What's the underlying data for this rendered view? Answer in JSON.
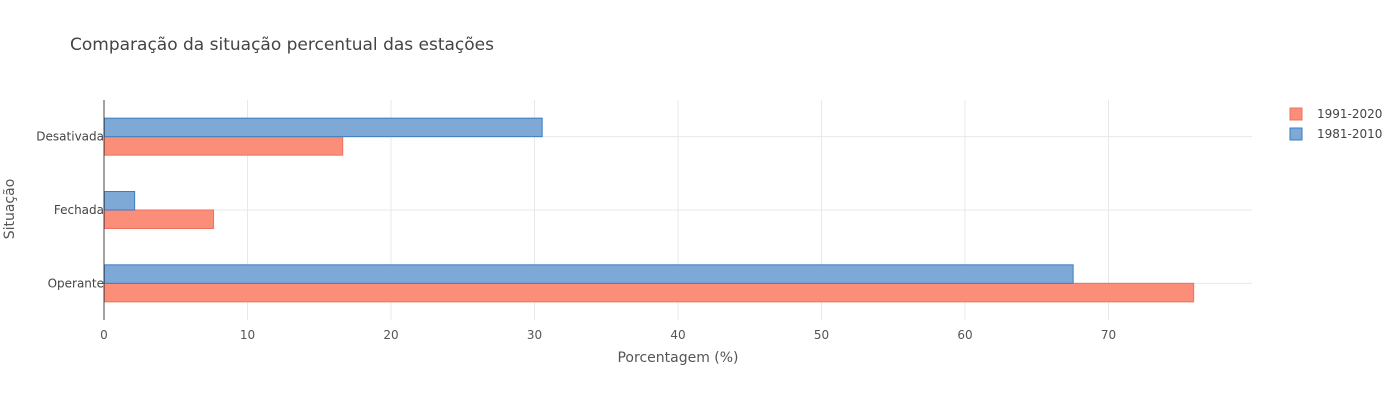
{
  "chart_data": {
    "type": "bar",
    "orientation": "horizontal",
    "barmode": "group",
    "title": "Comparação da situação percentual das estações",
    "xlabel": "Porcentagem (%)",
    "ylabel": "Situação",
    "categories": [
      "Operante",
      "Fechada",
      "Desativada"
    ],
    "xlim": [
      0,
      80
    ],
    "x_ticks": [
      0,
      10,
      20,
      30,
      40,
      50,
      60,
      70
    ],
    "x_tick_labels": [
      "0",
      "10",
      "20",
      "30",
      "40",
      "50",
      "60",
      "70"
    ],
    "grid": true,
    "legend_position": "top-right",
    "series": [
      {
        "name": "1991-2020",
        "values": [
          75.9,
          7.6,
          16.6
        ],
        "color": "#fa8e78",
        "stroke": "#f07060"
      },
      {
        "name": "1981-2010",
        "values": [
          67.5,
          2.1,
          30.5
        ],
        "color": "#7ea9d6",
        "stroke": "#3e7cbf"
      }
    ]
  }
}
